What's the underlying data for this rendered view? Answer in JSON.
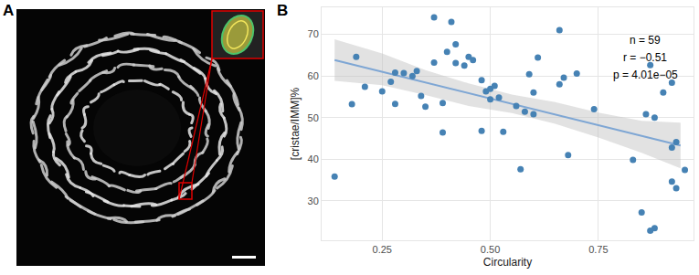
{
  "panel_labels": [
    "A",
    "B"
  ],
  "chart_data": {
    "type": "scatter",
    "x_label": "Circularity",
    "y_label": "[cristae/IMM]%",
    "annotations": [
      "n = 59",
      "r = −0.51",
      "p = 4.01e−05"
    ],
    "x": [
      0.14,
      0.18,
      0.19,
      0.21,
      0.25,
      0.27,
      0.28,
      0.28,
      0.3,
      0.32,
      0.33,
      0.34,
      0.35,
      0.37,
      0.37,
      0.39,
      0.39,
      0.4,
      0.41,
      0.42,
      0.42,
      0.44,
      0.45,
      0.46,
      0.48,
      0.48,
      0.49,
      0.5,
      0.5,
      0.51,
      0.52,
      0.53,
      0.56,
      0.57,
      0.58,
      0.59,
      0.6,
      0.6,
      0.61,
      0.66,
      0.66,
      0.67,
      0.68,
      0.7,
      0.74,
      0.83,
      0.85,
      0.86,
      0.87,
      0.87,
      0.88,
      0.88,
      0.9,
      0.92,
      0.92,
      0.92,
      0.93,
      0.93,
      0.95
    ],
    "values": [
      35.8,
      53.2,
      64.6,
      57.4,
      56.3,
      58.6,
      60.8,
      53.3,
      60.7,
      60.0,
      61.2,
      55.2,
      52.6,
      74.1,
      63.2,
      53.5,
      46.4,
      65.8,
      73.0,
      63.1,
      67.6,
      62.5,
      64.6,
      63.8,
      46.8,
      59.0,
      56.3,
      56.9,
      54.4,
      57.6,
      54.8,
      46.6,
      52.8,
      37.6,
      51.4,
      60.4,
      50.8,
      56.0,
      64.4,
      58.0,
      71.0,
      59.6,
      41.0,
      60.6,
      52.0,
      39.8,
      27.2,
      50.8,
      62.6,
      22.8,
      50.0,
      23.4,
      56.0,
      58.4,
      42.8,
      34.6,
      44.1,
      33.0,
      37.4
    ],
    "color": "#4682b4",
    "marker": "circle",
    "fit": {
      "x": [
        0.14,
        0.94
      ],
      "values": [
        63.8,
        43.3
      ],
      "color": "#7ea6d4",
      "line_style": "solid"
    },
    "band": {
      "x": [
        0.14,
        0.25,
        0.35,
        0.45,
        0.55,
        0.65,
        0.75,
        0.85,
        0.94
      ],
      "lower": [
        58.8,
        57.8,
        55.4,
        52.8,
        51.1,
        48.5,
        45.2,
        41.5,
        37.8
      ],
      "upper": [
        68.8,
        65.4,
        61.4,
        58.2,
        55.5,
        53.7,
        51.2,
        49.2,
        48.8
      ],
      "color": "#bfbfbf"
    },
    "xlim": [
      0.11,
      0.97
    ],
    "ylim": [
      20.5,
      76.5
    ],
    "xticks": [
      {
        "value": 0.25,
        "label": "0.25"
      },
      {
        "value": 0.5,
        "label": "0.50"
      },
      {
        "value": 0.75,
        "label": "0.75"
      }
    ],
    "yticks": [
      30,
      40,
      50,
      60,
      70
    ],
    "grid": true
  }
}
